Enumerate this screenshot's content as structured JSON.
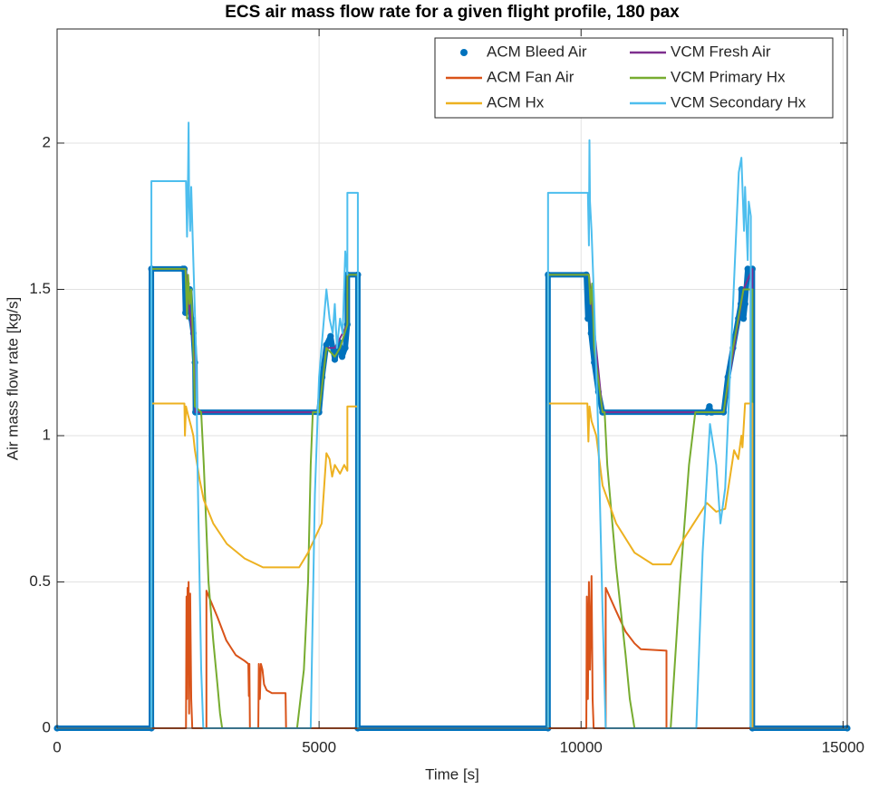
{
  "chart_data": {
    "type": "line",
    "title": "ECS air mass flow rate for a given flight profile, 180 pax",
    "x_label": "Time [s]",
    "y_label": "Air mass flow rate [kg/s]",
    "xlim": [
      0,
      15080
    ],
    "ylim": [
      0,
      2.39
    ],
    "xticks": [
      0,
      5000,
      10000,
      15000
    ],
    "yticks": [
      0,
      0.5,
      1,
      1.5,
      2
    ],
    "grid": true,
    "legend": "northeast",
    "series": [
      {
        "name": "ACM Bleed Air",
        "color": "#0072BD",
        "marker": "dot",
        "x": [
          0,
          1800,
          1800,
          2400,
          2430,
          2450,
          2470,
          2500,
          2530,
          2560,
          2600,
          2630,
          2640,
          5000,
          5060,
          5140,
          5220,
          5300,
          5380,
          5440,
          5500,
          5540,
          5540,
          5740,
          5740,
          9370,
          9370,
          10100,
          10130,
          10160,
          10190,
          10250,
          10330,
          10410,
          10420,
          12400,
          12450,
          12480,
          12500,
          12720,
          12800,
          12900,
          13000,
          13050,
          13060,
          13100,
          13130,
          13180,
          13270,
          13270,
          15080
        ],
        "values": [
          0,
          0,
          1.57,
          1.57,
          1.57,
          1.42,
          1.52,
          1.45,
          1.5,
          1.4,
          1.35,
          1.25,
          1.08,
          1.08,
          1.2,
          1.31,
          1.34,
          1.26,
          1.32,
          1.27,
          1.3,
          1.38,
          1.55,
          1.55,
          0,
          0,
          1.55,
          1.55,
          1.4,
          1.48,
          1.35,
          1.25,
          1.15,
          1.08,
          1.08,
          1.08,
          1.1,
          1.08,
          1.08,
          1.08,
          1.2,
          1.3,
          1.4,
          1.45,
          1.5,
          1.4,
          1.45,
          1.57,
          1.57,
          0,
          0
        ]
      },
      {
        "name": "VCM Fresh Air",
        "color": "#7E2F8E",
        "x": [
          0,
          1800,
          1800,
          2450,
          2630,
          2640,
          5000,
          5140,
          5300,
          5540,
          5540,
          5740,
          5740,
          9370,
          9370,
          10150,
          10410,
          12720,
          13100,
          13270,
          13270,
          15080
        ],
        "values": [
          0,
          0,
          1.57,
          1.57,
          1.25,
          1.08,
          1.08,
          1.3,
          1.3,
          1.38,
          1.55,
          1.55,
          0,
          0,
          1.55,
          1.55,
          1.08,
          1.08,
          1.5,
          1.57,
          0,
          0
        ]
      },
      {
        "name": "ACM Fan Air",
        "color": "#D95319",
        "x": [
          0,
          2460,
          2470,
          2480,
          2490,
          2500,
          2510,
          2520,
          2530,
          2540,
          2560,
          2580,
          2590,
          2850,
          2850,
          3060,
          3230,
          3410,
          3580,
          3650,
          3660,
          3670,
          3680,
          3840,
          3850,
          3870,
          3890,
          3920,
          3950,
          4000,
          4100,
          4360,
          4370,
          10100,
          10110,
          10130,
          10150,
          10170,
          10200,
          10220,
          10240,
          10470,
          10470,
          10670,
          10850,
          11020,
          11140,
          11630,
          11630,
          15080
        ],
        "values": [
          0,
          0,
          0.45,
          0.1,
          0.48,
          0.2,
          0.5,
          0.05,
          0.42,
          0.46,
          0.1,
          0,
          0,
          0,
          0.47,
          0.38,
          0.3,
          0.25,
          0.23,
          0.22,
          0.11,
          0.22,
          0,
          0,
          0.22,
          0.1,
          0.22,
          0.2,
          0.15,
          0.13,
          0.12,
          0.12,
          0,
          0,
          0.45,
          0.1,
          0.5,
          0.2,
          0.52,
          0.1,
          0,
          0,
          0.48,
          0.4,
          0.33,
          0.29,
          0.27,
          0.265,
          0,
          0
        ]
      },
      {
        "name": "VCM Primary Hx",
        "color": "#77AC30",
        "x": [
          0,
          1800,
          1800,
          2450,
          2480,
          2500,
          2530,
          2560,
          2600,
          2630,
          2750,
          2800,
          2890,
          2980,
          3060,
          3110,
          3150,
          4580,
          4710,
          4790,
          4840,
          4880,
          5000,
          5140,
          5300,
          5400,
          5540,
          5540,
          5740,
          5740,
          9370,
          9370,
          10150,
          10180,
          10210,
          10250,
          10410,
          10450,
          10500,
          10670,
          10850,
          10930,
          11020,
          11710,
          11890,
          12060,
          12180,
          12720,
          12900,
          13050,
          13100,
          13270,
          13270,
          15080
        ],
        "values": [
          0,
          0,
          1.57,
          1.57,
          1.4,
          1.55,
          1.45,
          1.5,
          1.3,
          1.1,
          1.08,
          0.9,
          0.5,
          0.3,
          0.15,
          0.05,
          0,
          0,
          0.2,
          0.5,
          0.9,
          1.08,
          1.08,
          1.3,
          1.27,
          1.3,
          1.38,
          1.55,
          1.55,
          0,
          0,
          1.55,
          1.55,
          1.45,
          1.52,
          1.3,
          1.08,
          1.08,
          0.9,
          0.55,
          0.25,
          0.1,
          0,
          0,
          0.5,
          0.9,
          1.08,
          1.08,
          1.3,
          1.45,
          1.5,
          1.5,
          0,
          0
        ]
      },
      {
        "name": "ACM Hx",
        "color": "#EDB120",
        "x": [
          0,
          1800,
          1800,
          2430,
          2440,
          2460,
          2500,
          2560,
          2600,
          2630,
          2720,
          2800,
          2980,
          3240,
          3580,
          3930,
          4620,
          4790,
          5050,
          5140,
          5200,
          5250,
          5300,
          5400,
          5480,
          5540,
          5540,
          5740,
          5740,
          9370,
          9370,
          10120,
          10140,
          10160,
          10200,
          10290,
          10410,
          10670,
          11020,
          11370,
          11710,
          11970,
          12400,
          12580,
          12750,
          12920,
          13000,
          13060,
          13080,
          13130,
          13270,
          13270,
          15080
        ],
        "values": [
          0,
          0,
          1.11,
          1.11,
          1.0,
          1.1,
          1.07,
          1.03,
          1.0,
          0.95,
          0.85,
          0.78,
          0.7,
          0.63,
          0.58,
          0.55,
          0.55,
          0.6,
          0.7,
          0.94,
          0.92,
          0.86,
          0.9,
          0.87,
          0.9,
          0.88,
          1.1,
          1.1,
          0,
          0,
          1.11,
          1.11,
          0.98,
          1.1,
          1.05,
          1.0,
          0.83,
          0.7,
          0.6,
          0.56,
          0.56,
          0.65,
          0.77,
          0.74,
          0.75,
          0.95,
          0.92,
          1.0,
          0.96,
          1.11,
          1.11,
          0,
          0
        ]
      },
      {
        "name": "VCM Secondary Hx",
        "color": "#4DBEEE",
        "x": [
          0,
          1800,
          1800,
          2460,
          2480,
          2500,
          2510,
          2520,
          2540,
          2560,
          2600,
          2650,
          2680,
          2720,
          2750,
          2790,
          4840,
          4920,
          5000,
          5140,
          5200,
          5260,
          5300,
          5340,
          5400,
          5450,
          5500,
          5540,
          5540,
          5740,
          5740,
          9370,
          9370,
          10130,
          10150,
          10160,
          10170,
          10200,
          10250,
          10330,
          10410,
          10470,
          12200,
          12320,
          12460,
          12580,
          12660,
          12750,
          12840,
          13010,
          13060,
          13110,
          13130,
          13180,
          13200,
          13240,
          13240,
          15080
        ],
        "values": [
          0,
          0,
          1.87,
          1.87,
          1.68,
          1.9,
          2.07,
          1.8,
          1.7,
          1.85,
          1.6,
          1.3,
          0.9,
          0.5,
          0.2,
          0,
          0,
          0.8,
          1.2,
          1.5,
          1.4,
          1.35,
          1.45,
          1.3,
          1.4,
          1.35,
          1.63,
          1.55,
          1.83,
          1.83,
          0,
          0,
          1.83,
          1.83,
          1.65,
          2.01,
          1.8,
          1.7,
          1.45,
          1.0,
          0.4,
          0,
          0,
          0.6,
          1.04,
          0.9,
          0.7,
          0.82,
          1.2,
          1.9,
          1.95,
          1.7,
          1.85,
          1.6,
          1.8,
          1.75,
          0,
          0
        ]
      }
    ]
  }
}
